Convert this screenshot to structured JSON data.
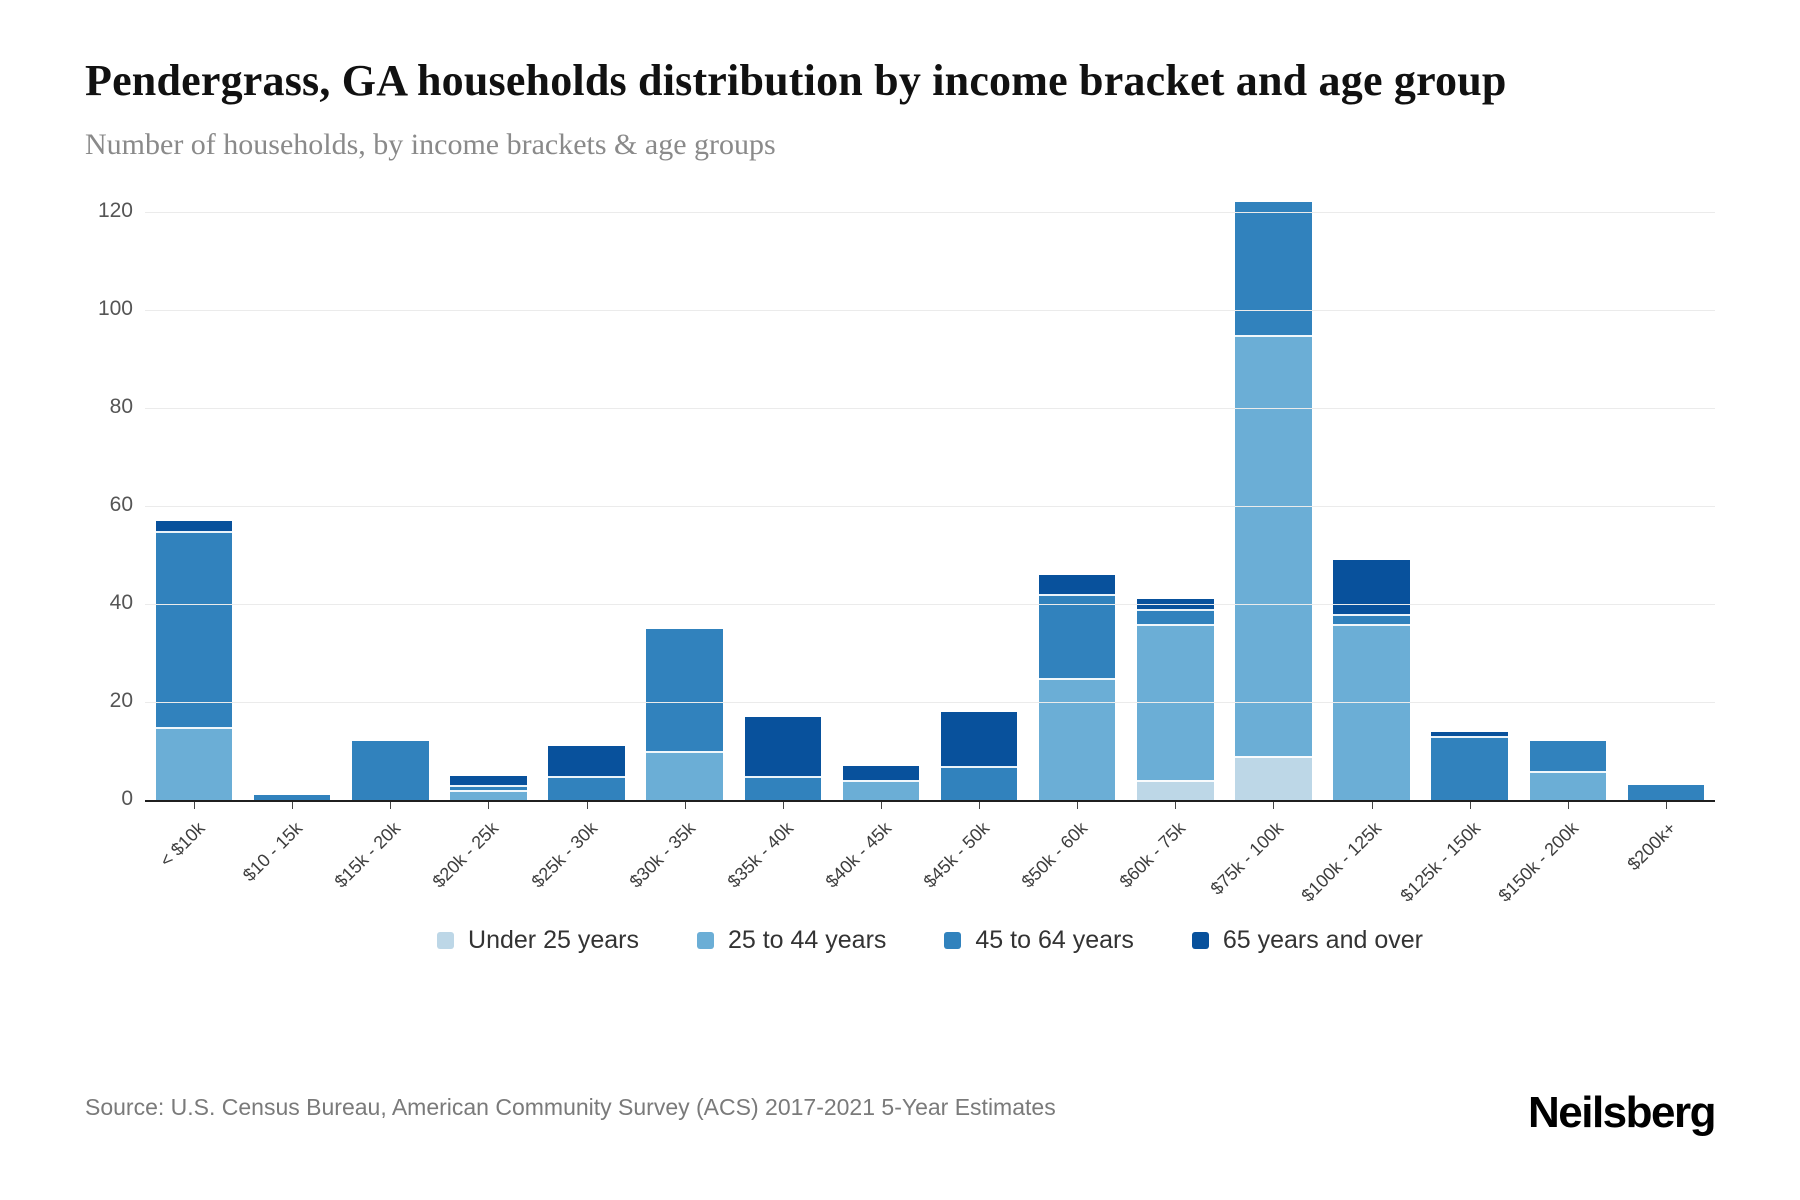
{
  "header": {
    "title": "Pendergrass, GA households distribution by income bracket and age group",
    "subtitle": "Number of households, by income brackets & age groups"
  },
  "footer": {
    "source": "Source: U.S. Census Bureau, American Community Survey (ACS) 2017-2021 5-Year Estimates",
    "logo": "Neilsberg"
  },
  "chart_data": {
    "type": "bar",
    "stacked": true,
    "title": "Pendergrass, GA households distribution by income bracket and age group",
    "xlabel": "",
    "ylabel": "Number of households",
    "ylim": [
      0,
      120
    ],
    "yticks": [
      0,
      20,
      40,
      60,
      80,
      100,
      120
    ],
    "grid": true,
    "legend_position": "bottom",
    "categories": [
      "< $10k",
      "$10 - 15k",
      "$15k - 20k",
      "$20k - 25k",
      "$25k - 30k",
      "$30k - 35k",
      "$35k - 40k",
      "$40k - 45k",
      "$45k - 50k",
      "$50k - 60k",
      "$60k - 75k",
      "$75k - 100k",
      "$100k - 125k",
      "$125k - 150k",
      "$150k - 200k",
      "$200k+"
    ],
    "series": [
      {
        "name": "Under 25 years",
        "color": "#bdd7e7",
        "values": [
          0,
          0,
          0,
          0,
          0,
          0,
          0,
          0,
          0,
          0,
          4,
          9,
          0,
          0,
          0,
          0
        ]
      },
      {
        "name": "25 to 44 years",
        "color": "#6baed6",
        "values": [
          15,
          0,
          0,
          2,
          0,
          10,
          0,
          4,
          0,
          25,
          32,
          86,
          36,
          0,
          6,
          0
        ]
      },
      {
        "name": "45 to 64 years",
        "color": "#3182bd",
        "values": [
          40,
          1,
          12,
          1,
          5,
          25,
          5,
          0,
          7,
          17,
          3,
          27,
          2,
          13,
          6,
          3
        ]
      },
      {
        "name": "65 years and over",
        "color": "#08519c",
        "values": [
          2,
          0,
          0,
          2,
          6,
          0,
          12,
          3,
          11,
          4,
          2,
          0,
          11,
          1,
          0,
          0
        ]
      }
    ],
    "totals": [
      57,
      1,
      12,
      5,
      11,
      35,
      17,
      7,
      18,
      46,
      41,
      122,
      49,
      14,
      12,
      3
    ]
  }
}
